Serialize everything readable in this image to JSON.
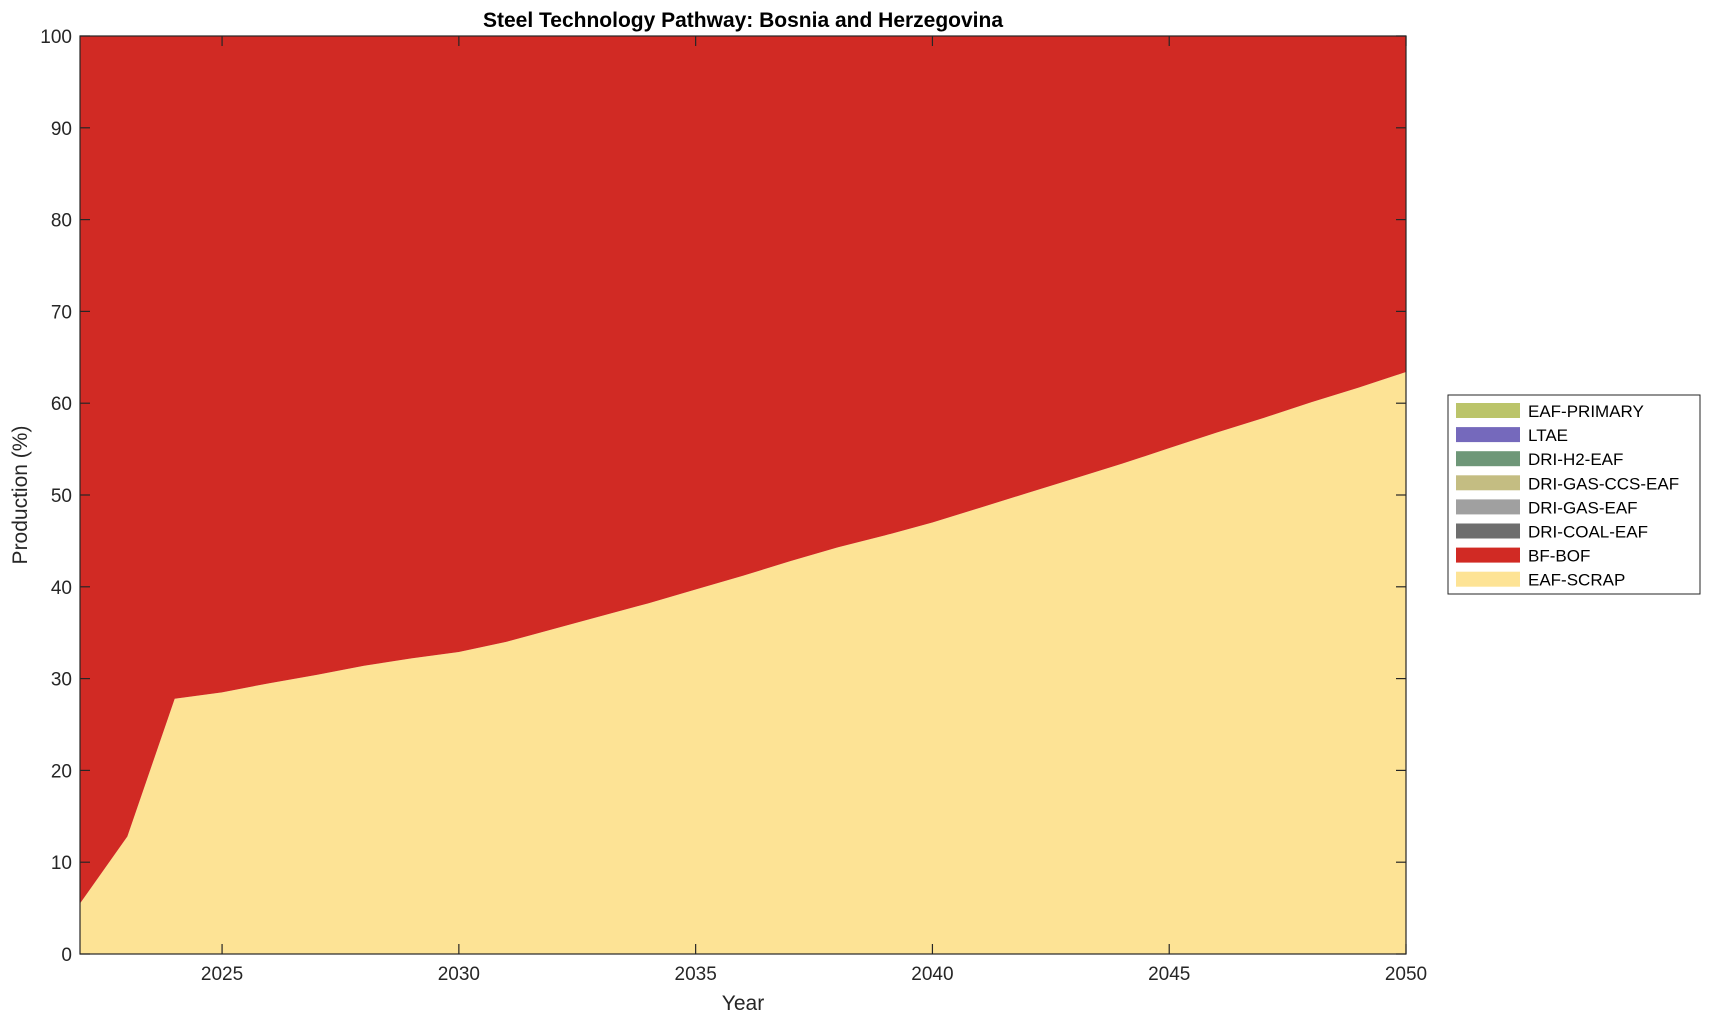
{
  "chart_data": {
    "type": "area",
    "stacked": true,
    "title": "Steel Technology Pathway: Bosnia and Herzegovina",
    "xlabel": "Year",
    "ylabel": "Production (%)",
    "xlim": [
      2022,
      2050
    ],
    "ylim": [
      0,
      100
    ],
    "xticks": [
      2025,
      2030,
      2035,
      2040,
      2045,
      2050
    ],
    "yticks": [
      0,
      10,
      20,
      30,
      40,
      50,
      60,
      70,
      80,
      90,
      100
    ],
    "grid": false,
    "legend_position": "right",
    "x": [
      2022,
      2023,
      2024,
      2025,
      2026,
      2027,
      2028,
      2029,
      2030,
      2031,
      2032,
      2033,
      2034,
      2035,
      2036,
      2037,
      2038,
      2039,
      2040,
      2041,
      2042,
      2043,
      2044,
      2045,
      2046,
      2047,
      2048,
      2049,
      2050
    ],
    "series": [
      {
        "name": "EAF-SCRAP",
        "color": "#FDE395",
        "values": [
          5.5,
          12.8,
          27.8,
          28.5,
          29.5,
          30.4,
          31.4,
          32.2,
          32.9,
          34.0,
          35.4,
          36.8,
          38.2,
          39.7,
          41.2,
          42.8,
          44.3,
          45.6,
          47.0,
          48.6,
          50.2,
          51.8,
          53.4,
          55.1,
          56.8,
          58.4,
          60.1,
          61.7,
          63.4
        ]
      },
      {
        "name": "BF-BOF",
        "color": "#D12A24",
        "values": [
          94.5,
          87.2,
          72.2,
          71.5,
          70.5,
          69.6,
          68.6,
          67.8,
          67.1,
          66.0,
          64.6,
          63.2,
          61.8,
          60.3,
          58.8,
          57.2,
          55.7,
          54.4,
          53.0,
          51.4,
          49.8,
          48.2,
          46.6,
          44.9,
          43.2,
          41.6,
          39.9,
          38.3,
          36.6
        ]
      },
      {
        "name": "DRI-COAL-EAF",
        "color": "#6E6E6E",
        "values": [
          0,
          0,
          0,
          0,
          0,
          0,
          0,
          0,
          0,
          0,
          0,
          0,
          0,
          0,
          0,
          0,
          0,
          0,
          0,
          0,
          0,
          0,
          0,
          0,
          0,
          0,
          0,
          0,
          0
        ]
      },
      {
        "name": "DRI-GAS-EAF",
        "color": "#A0A0A0",
        "values": [
          0,
          0,
          0,
          0,
          0,
          0,
          0,
          0,
          0,
          0,
          0,
          0,
          0,
          0,
          0,
          0,
          0,
          0,
          0,
          0,
          0,
          0,
          0,
          0,
          0,
          0,
          0,
          0,
          0
        ]
      },
      {
        "name": "DRI-GAS-CCS-EAF",
        "color": "#C4BD82",
        "values": [
          0,
          0,
          0,
          0,
          0,
          0,
          0,
          0,
          0,
          0,
          0,
          0,
          0,
          0,
          0,
          0,
          0,
          0,
          0,
          0,
          0,
          0,
          0,
          0,
          0,
          0,
          0,
          0,
          0
        ]
      },
      {
        "name": "DRI-H2-EAF",
        "color": "#6E9778",
        "values": [
          0,
          0,
          0,
          0,
          0,
          0,
          0,
          0,
          0,
          0,
          0,
          0,
          0,
          0,
          0,
          0,
          0,
          0,
          0,
          0,
          0,
          0,
          0,
          0,
          0,
          0,
          0,
          0,
          0
        ]
      },
      {
        "name": "LTAE",
        "color": "#7569BC",
        "values": [
          0,
          0,
          0,
          0,
          0,
          0,
          0,
          0,
          0,
          0,
          0,
          0,
          0,
          0,
          0,
          0,
          0,
          0,
          0,
          0,
          0,
          0,
          0,
          0,
          0,
          0,
          0,
          0,
          0
        ]
      },
      {
        "name": "EAF-PRIMARY",
        "color": "#BBC46A",
        "values": [
          0,
          0,
          0,
          0,
          0,
          0,
          0,
          0,
          0,
          0,
          0,
          0,
          0,
          0,
          0,
          0,
          0,
          0,
          0,
          0,
          0,
          0,
          0,
          0,
          0,
          0,
          0,
          0,
          0
        ]
      }
    ],
    "legend_order": [
      "EAF-PRIMARY",
      "LTAE",
      "DRI-H2-EAF",
      "DRI-GAS-CCS-EAF",
      "DRI-GAS-EAF",
      "DRI-COAL-EAF",
      "BF-BOF",
      "EAF-SCRAP"
    ]
  }
}
